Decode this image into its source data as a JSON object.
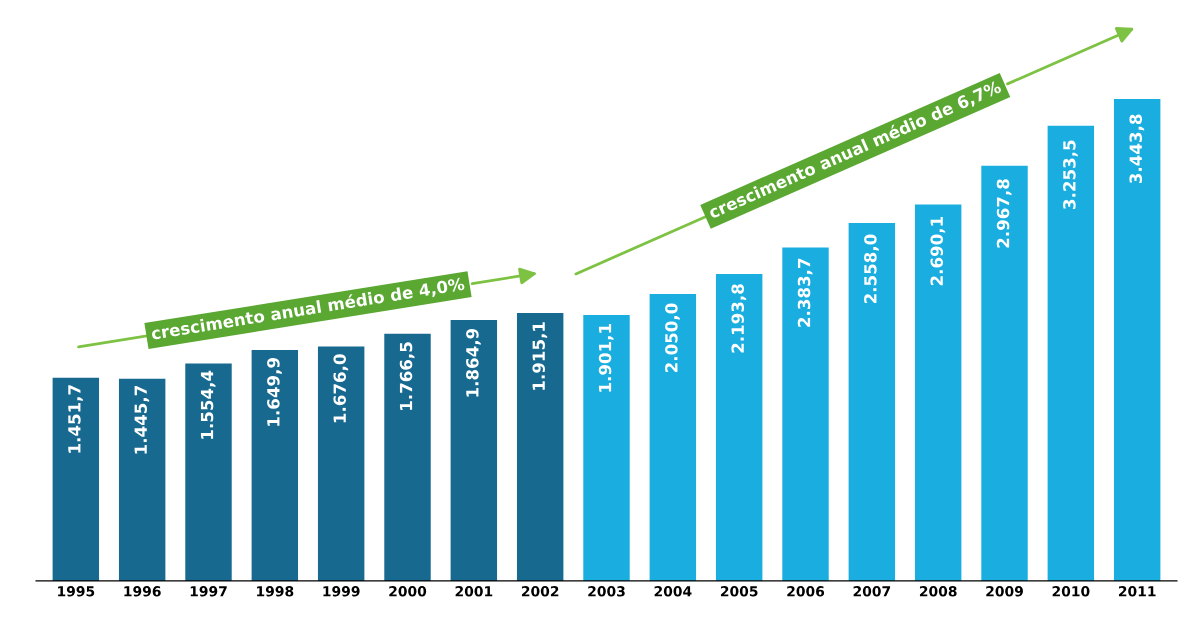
{
  "chart_data": {
    "type": "bar",
    "categories": [
      "1995",
      "1996",
      "1997",
      "1998",
      "1999",
      "2000",
      "2001",
      "2002",
      "2003",
      "2004",
      "2005",
      "2006",
      "2007",
      "2008",
      "2009",
      "2010",
      "2011"
    ],
    "values": [
      1451.7,
      1445.7,
      1554.4,
      1649.9,
      1676.0,
      1766.5,
      1864.9,
      1915.1,
      1901.1,
      2050.0,
      2193.8,
      2383.7,
      2558.0,
      2690.1,
      2967.8,
      3253.5,
      3443.8
    ],
    "value_labels": [
      "1.451,7",
      "1.445,7",
      "1.554,4",
      "1.649,9",
      "1.676,0",
      "1.766,5",
      "1.864,9",
      "1.915,1",
      "1.901,1",
      "2.050,0",
      "2.193,8",
      "2.383,7",
      "2.558,0",
      "2.690,1",
      "2.967,8",
      "3.253,5",
      "3.443,8"
    ],
    "colors": [
      "#17698f",
      "#17698f",
      "#17698f",
      "#17698f",
      "#17698f",
      "#17698f",
      "#17698f",
      "#17698f",
      "#1aaee0",
      "#1aaee0",
      "#1aaee0",
      "#1aaee0",
      "#1aaee0",
      "#1aaee0",
      "#1aaee0",
      "#1aaee0",
      "#1aaee0"
    ],
    "annotations": [
      "crescimento anual médio de 4,0%",
      "crescimento anual médio de 6,7%"
    ]
  }
}
